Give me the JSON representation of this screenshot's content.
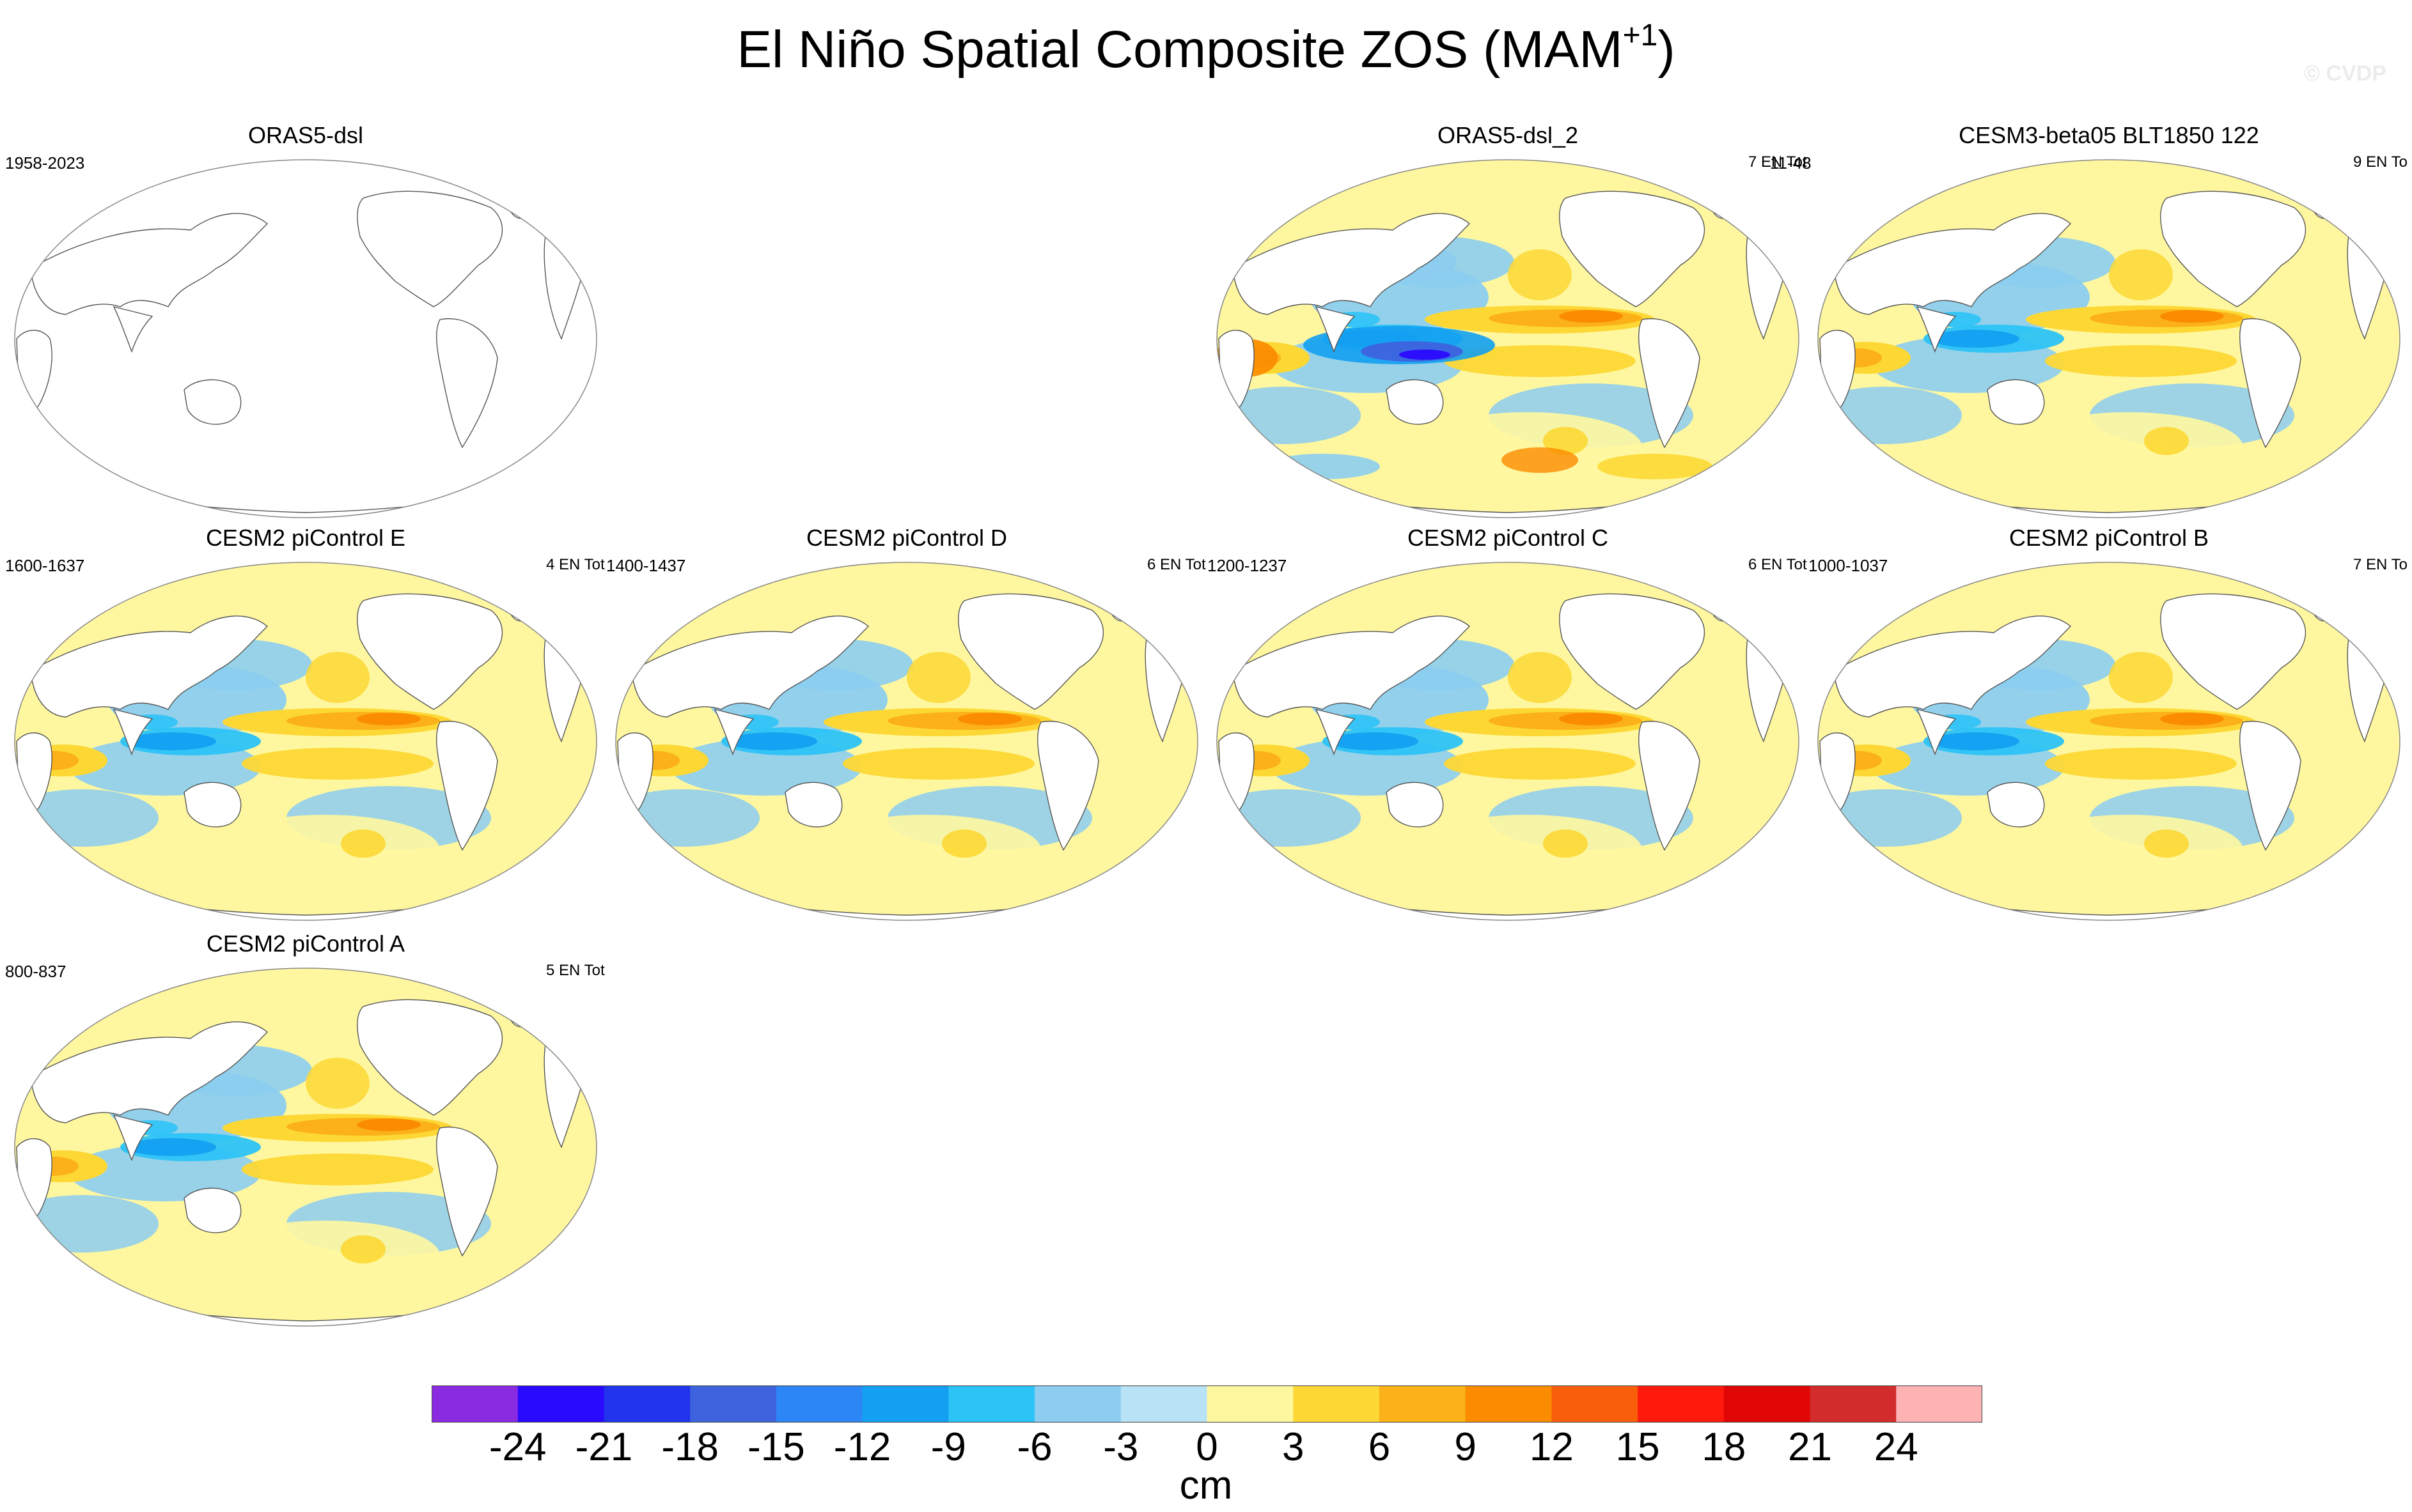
{
  "figure": {
    "title": "El Niño Spatial Composite ZOS (MAM",
    "title_superscript": "+1",
    "title_close": ")",
    "watermark": "© CVDP"
  },
  "panels": [
    {
      "title": "ORAS5-dsl",
      "left_label": "1958-2023",
      "right_label": "",
      "style": "blank"
    },
    {
      "title": "ORAS5-dsl_2",
      "left_label": "",
      "right_label": "7 EN Tot",
      "style": "noisy"
    },
    {
      "title": "CESM3-beta05 BLT1850 122",
      "left_label": "11-48",
      "right_label": "9 EN To",
      "style": "smooth"
    },
    {
      "title": "CESM2 piControl E",
      "left_label": "1600-1637",
      "right_label": "4 EN Tot",
      "style": "smooth"
    },
    {
      "title": "CESM2 piControl D",
      "left_label": "1400-1437",
      "right_label": "6 EN Tot",
      "style": "smooth"
    },
    {
      "title": "CESM2 piControl C",
      "left_label": "1200-1237",
      "right_label": "6 EN Tot",
      "style": "smooth"
    },
    {
      "title": "CESM2 piControl B",
      "left_label": "1000-1037",
      "right_label": "7 EN To",
      "style": "smooth"
    },
    {
      "title": "CESM2 piControl A",
      "left_label": "800-837",
      "right_label": "5 EN Tot",
      "style": "smooth"
    }
  ],
  "colorbar": {
    "units": "cm",
    "labels": [
      "-24",
      "-21",
      "-18",
      "-15",
      "-12",
      "-9",
      "-6",
      "-3",
      "0",
      "3",
      "6",
      "9",
      "12",
      "15",
      "18",
      "21",
      "24"
    ],
    "colors": [
      "#8a2be2",
      "#2a0aff",
      "#2233ee",
      "#3d63de",
      "#2d86f5",
      "#13a0f2",
      "#2cc3f7",
      "#8ccdf0",
      "#b8e2f5",
      "#fff7a0",
      "#fdd835",
      "#fbb117",
      "#fb8c00",
      "#f95f0a",
      "#fd1a0d",
      "#e10606",
      "#d22c2c",
      "#fdb3b3"
    ]
  }
}
